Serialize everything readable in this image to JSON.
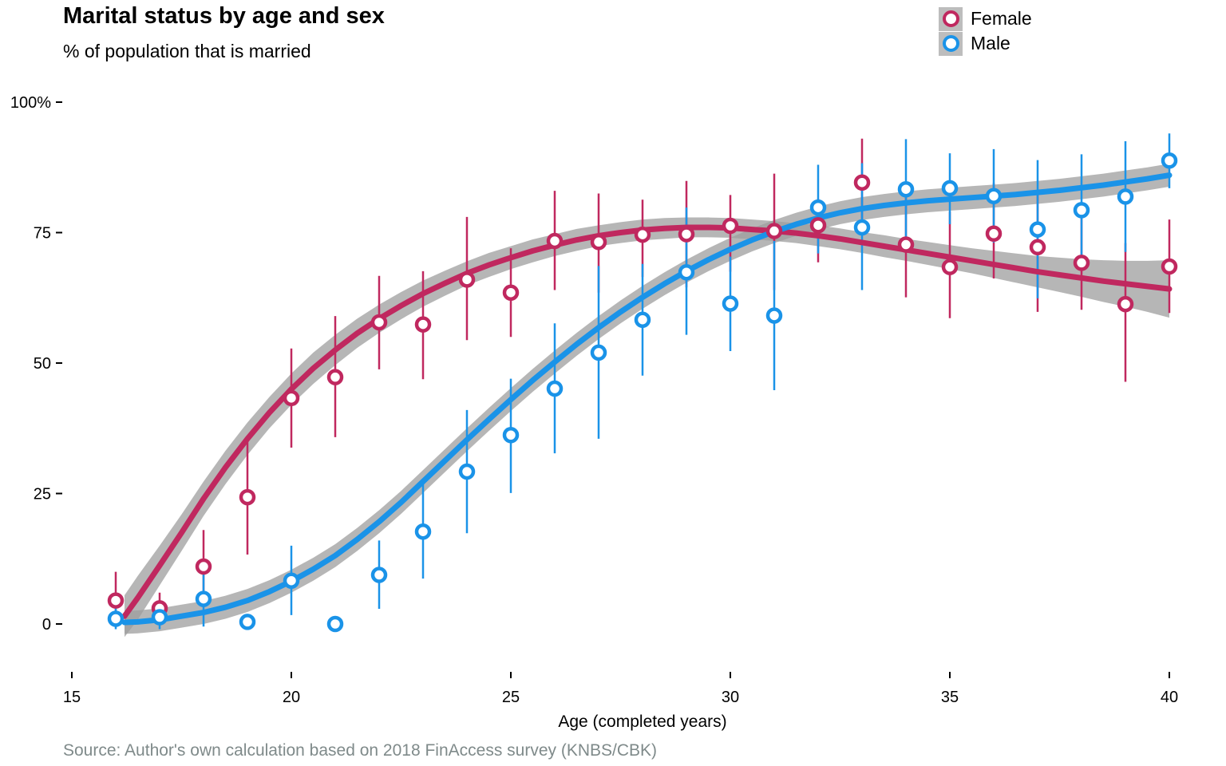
{
  "chart_data": {
    "type": "scatter",
    "title": "Marital status by age and sex",
    "subtitle": "% of population that is married",
    "xlabel": "Age (completed years)",
    "ylabel": "",
    "caption": "Source: Author's own calculation based on 2018 FinAccess survey (KNBS/CBK)",
    "xlim": [
      15,
      40
    ],
    "ylim": [
      0,
      100
    ],
    "x_ticks": [
      15,
      20,
      25,
      30,
      35,
      40
    ],
    "y_ticks": [
      0,
      25,
      50,
      75,
      100
    ],
    "y_tick_labels": [
      "0",
      "25",
      "50",
      "75",
      "100%"
    ],
    "legend_position": "top-right",
    "grid": false,
    "series": [
      {
        "name": "Female",
        "color": "#c0285f",
        "x": [
          16,
          17,
          18,
          19,
          20,
          21,
          22,
          23,
          24,
          25,
          26,
          27,
          28,
          29,
          30,
          31,
          32,
          33,
          34,
          35,
          36,
          37,
          38,
          39,
          40
        ],
        "y": [
          4.5,
          3,
          11,
          24.3,
          43.3,
          47.3,
          57.8,
          57.4,
          66,
          63.5,
          73.4,
          73.2,
          74.6,
          74.7,
          76.3,
          75.3,
          76.4,
          84.6,
          72.7,
          68.4,
          74.8,
          72.2,
          69.2,
          61.3,
          68.5
        ],
        "err_low": [
          0,
          0.5,
          5,
          13.3,
          33.8,
          35.8,
          48.8,
          46.9,
          54.4,
          55,
          64,
          63.5,
          66.5,
          64.5,
          67.5,
          64,
          69.3,
          75.5,
          62.6,
          58.6,
          66.2,
          59.8,
          60.2,
          46.4,
          59.6
        ],
        "err_high": [
          10,
          6,
          18,
          35.6,
          52.8,
          59,
          66.7,
          67.6,
          78,
          72,
          83,
          82.5,
          81.3,
          84.9,
          82.2,
          86.3,
          81.5,
          93,
          82.5,
          79,
          84.5,
          83.2,
          79,
          73,
          77.5
        ],
        "smooth_x": [
          16.2,
          16.5,
          17,
          17.5,
          18,
          18.5,
          19,
          19.5,
          20,
          20.5,
          21,
          21.5,
          22,
          22.5,
          23,
          23.5,
          24,
          24.5,
          25,
          25.5,
          26,
          26.5,
          27,
          27.5,
          28,
          28.5,
          29,
          29.5,
          30,
          30.5,
          31,
          31.5,
          32,
          32.5,
          33,
          33.5,
          34,
          34.5,
          35,
          35.5,
          36,
          36.5,
          37,
          37.5,
          38,
          38.5,
          39,
          39.5,
          40
        ],
        "smooth_y": [
          1.5,
          5,
          11.2,
          17.5,
          24,
          30,
          35.5,
          40.5,
          45,
          49,
          52.5,
          55.7,
          58.5,
          61,
          63.3,
          65.3,
          67.2,
          68.8,
          70.2,
          71.5,
          72.6,
          73.6,
          74.4,
          75,
          75.5,
          75.8,
          76,
          76,
          75.9,
          75.6,
          75.3,
          74.9,
          74.4,
          73.8,
          73.1,
          72.4,
          71.7,
          71,
          70.3,
          69.6,
          68.9,
          68.2,
          67.5,
          66.9,
          66.3,
          65.7,
          65.2,
          64.7,
          64.2
        ],
        "smooth_band": [
          4,
          4.2,
          3.8,
          3.5,
          3.3,
          3.2,
          3.1,
          3,
          3,
          3,
          2.9,
          2.8,
          2.7,
          2.6,
          2.5,
          2.4,
          2.3,
          2.3,
          2.2,
          2.2,
          2.1,
          2.1,
          2,
          2,
          2,
          2,
          1.9,
          1.9,
          1.9,
          1.9,
          1.9,
          1.9,
          2,
          2,
          2,
          2.1,
          2.1,
          2.2,
          2.3,
          2.4,
          2.6,
          2.8,
          3,
          3.3,
          3.6,
          4,
          4.4,
          4.9,
          5.5
        ]
      },
      {
        "name": "Male",
        "color": "#1a93e8",
        "x": [
          16,
          17,
          18,
          19,
          20,
          21,
          22,
          23,
          24,
          25,
          26,
          27,
          28,
          29,
          30,
          31,
          32,
          33,
          34,
          35,
          36,
          37,
          38,
          39,
          40
        ],
        "y": [
          1,
          1.3,
          4.8,
          0.4,
          8.3,
          0,
          9.4,
          17.7,
          29.2,
          36.2,
          45.1,
          52,
          58.3,
          67.4,
          61.4,
          59.1,
          79.8,
          76,
          83.3,
          83.5,
          82,
          75.6,
          79.3,
          81.9,
          88.8
        ],
        "err_low": [
          -1,
          -1,
          -0.5,
          0,
          1.7,
          0,
          2.9,
          8.7,
          17.4,
          25.1,
          32.7,
          35.5,
          47.6,
          55.4,
          52.3,
          44.8,
          71,
          64,
          73.8,
          76.6,
          73.1,
          62.4,
          68.6,
          71.3,
          83.5
        ],
        "err_high": [
          3,
          3.5,
          9.9,
          0.8,
          15,
          0,
          16,
          27,
          41,
          47,
          57.6,
          68.6,
          69,
          79.8,
          70.4,
          73.4,
          88,
          88.3,
          92.9,
          90.2,
          91,
          88.9,
          90,
          92.5,
          94
        ],
        "smooth_x": [
          16.2,
          16.5,
          17,
          17.5,
          18,
          18.5,
          19,
          19.5,
          20,
          20.5,
          21,
          21.5,
          22,
          22.5,
          23,
          23.5,
          24,
          24.5,
          25,
          25.5,
          26,
          26.5,
          27,
          27.5,
          28,
          28.5,
          29,
          29.5,
          30,
          30.5,
          31,
          31.5,
          32,
          32.5,
          33,
          33.5,
          34,
          34.5,
          35,
          35.5,
          36,
          36.5,
          37,
          37.5,
          38,
          38.5,
          39,
          39.5,
          40
        ],
        "smooth_y": [
          0.3,
          0.4,
          0.8,
          1.5,
          2.2,
          3.2,
          4.5,
          6.2,
          8.2,
          10.5,
          13.1,
          16.2,
          19.6,
          23.3,
          27.3,
          31.3,
          35.3,
          39.2,
          43,
          46.7,
          50.2,
          53.6,
          56.8,
          59.8,
          62.6,
          65.2,
          67.6,
          69.8,
          71.8,
          73.6,
          75.2,
          76.6,
          77.8,
          78.8,
          79.6,
          80.2,
          80.7,
          81.1,
          81.4,
          81.7,
          82,
          82.3,
          82.7,
          83.1,
          83.6,
          84.1,
          84.7,
          85.3,
          86
        ]
      }
    ]
  }
}
